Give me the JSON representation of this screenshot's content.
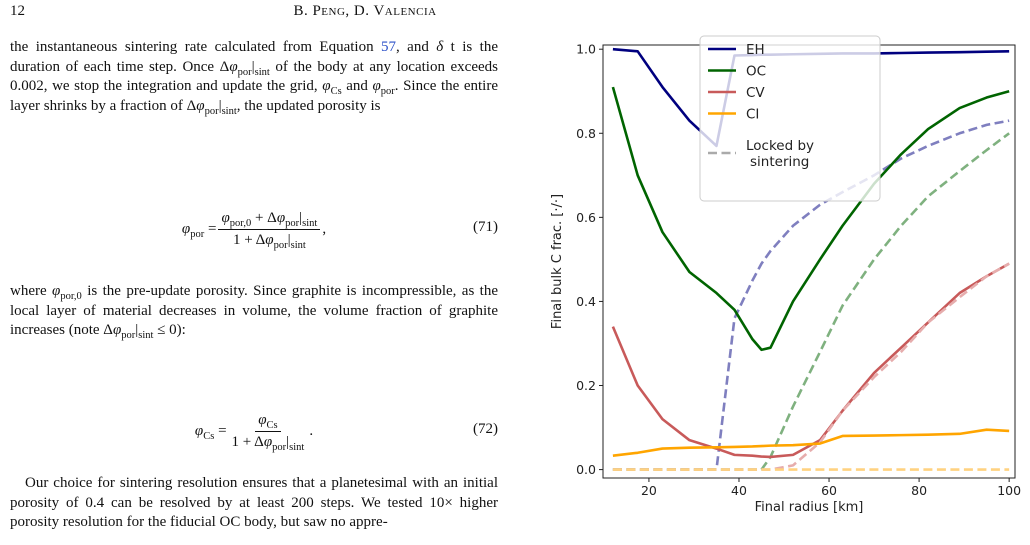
{
  "header": {
    "page_number": "12",
    "authors": "B. Peng, D. Valencia"
  },
  "text": {
    "paragraphs": [
      [
        "the instantaneous sintering rate calculated from Equation ",
        {
          "link": "57"
        },
        ", and ",
        {
          "i": "δ"
        },
        " t is the duration of each time step. Once Δ",
        {
          "i": "φ"
        },
        {
          "sub": "por"
        },
        "|",
        {
          "sub": "sint"
        },
        " of the body at any location exceeds 0.002, we stop the integration and update the grid, ",
        {
          "i": "φ"
        },
        {
          "sub": "Cs"
        },
        " and ",
        {
          "i": "φ"
        },
        {
          "sub": "por"
        },
        ". Since the entire layer shrinks by a fraction of Δ",
        {
          "i": "φ"
        },
        {
          "sub": "por"
        },
        "|",
        {
          "sub": "sint"
        },
        ", the updated porosity is"
      ],
      [
        "where ",
        {
          "i": "φ"
        },
        {
          "sub": "por,0"
        },
        " is the pre-update porosity. Since graphite is incompressible, as the local layer of material decreases in volume, the volume fraction of graphite increases (note Δ",
        {
          "i": "φ"
        },
        {
          "sub": "por"
        },
        "|",
        {
          "sub": "sint"
        },
        " ≤ 0):"
      ],
      [
        "Our choice for sintering resolution ensures that a planetesimal with an initial porosity of 0.4 can be resolved by at least 200 steps. We tested 10× higher porosity resolution for the fiducial OC body, but saw no appre-"
      ]
    ],
    "equations": [
      {
        "lhs": [
          {
            "i": "φ"
          },
          {
            "sub": "por"
          },
          " = "
        ],
        "num": [
          {
            "i": "φ"
          },
          {
            "sub": "por,0"
          },
          " + Δ",
          {
            "i": "φ"
          },
          {
            "sub": "por"
          },
          "|",
          {
            "sub": "sint"
          }
        ],
        "den": [
          "1 + Δ",
          {
            "i": "φ"
          },
          {
            "sub": "por"
          },
          "|",
          {
            "sub": "sint"
          }
        ],
        "tail": [
          ","
        ],
        "number": "(71)"
      },
      {
        "lhs": [
          {
            "i": "φ"
          },
          {
            "sub": "Cs"
          },
          " = "
        ],
        "num": [
          {
            "i": "φ"
          },
          {
            "sub": "Cs"
          }
        ],
        "den": [
          "1 + Δ",
          {
            "i": "φ"
          },
          {
            "sub": "por"
          },
          "|",
          {
            "sub": "sint"
          }
        ],
        "tail": [
          "."
        ],
        "number": "(72)"
      }
    ]
  },
  "chart_data": {
    "type": "line",
    "x_label": "Final radius [km]",
    "y_label": "Final bulk C frac. [·/·]",
    "x": [
      12,
      17.5,
      23,
      29,
      35,
      39,
      43,
      45,
      47,
      52,
      58,
      63,
      70,
      76,
      82,
      89,
      95,
      100
    ],
    "xlim": [
      9.8,
      101.3
    ],
    "xticks": [
      20,
      40,
      60,
      80,
      100
    ],
    "ylim": [
      -0.02,
      1.01
    ],
    "yticks": [
      {
        "value": 0,
        "label": "0.0"
      },
      {
        "value": 0.2,
        "label": "0.2"
      },
      {
        "value": 0.4,
        "label": "0.4"
      },
      {
        "value": 0.6,
        "label": "0.6"
      },
      {
        "value": 0.8,
        "label": "0.8"
      },
      {
        "value": 1,
        "label": "1.0"
      }
    ],
    "series": [
      {
        "name": "EH",
        "color": "#00007f",
        "values": [
          1.0,
          0.995,
          0.91,
          0.83,
          0.77,
          0.985,
          0.986,
          0.987,
          0.987,
          0.988,
          0.989,
          0.99,
          0.99,
          0.991,
          0.992,
          0.993,
          0.994,
          0.995
        ],
        "locked": {
          "color": "#7f7fbf",
          "values": [
            0,
            0,
            0,
            0,
            0,
            0.36,
            0.45,
            0.49,
            0.52,
            0.58,
            0.63,
            0.66,
            0.7,
            0.74,
            0.77,
            0.8,
            0.82,
            0.83
          ]
        }
      },
      {
        "name": "OC",
        "color": "#006400",
        "values": [
          0.91,
          0.7,
          0.565,
          0.47,
          0.42,
          0.38,
          0.31,
          0.285,
          0.29,
          0.4,
          0.5,
          0.58,
          0.68,
          0.75,
          0.81,
          0.86,
          0.885,
          0.9
        ],
        "locked": {
          "color": "#7fb17f",
          "values": [
            0,
            0,
            0,
            0,
            0,
            0,
            0,
            0,
            0.03,
            0.15,
            0.28,
            0.39,
            0.5,
            0.58,
            0.65,
            0.71,
            0.76,
            0.8
          ]
        }
      },
      {
        "name": "CV",
        "color": "#c85a5a",
        "values": [
          0.34,
          0.2,
          0.12,
          0.07,
          0.05,
          0.035,
          0.033,
          0.031,
          0.03,
          0.035,
          0.07,
          0.14,
          0.23,
          0.29,
          0.35,
          0.42,
          0.46,
          0.49
        ],
        "locked": {
          "color": "#e6adad",
          "values": [
            0,
            0,
            0,
            0,
            0,
            0,
            0,
            0,
            0,
            0.01,
            0.065,
            0.14,
            0.22,
            0.28,
            0.35,
            0.41,
            0.46,
            0.49
          ]
        }
      },
      {
        "name": "CI",
        "color": "#ffa500",
        "values": [
          0.033,
          0.04,
          0.05,
          0.052,
          0.053,
          0.054,
          0.055,
          0.056,
          0.057,
          0.058,
          0.062,
          0.08,
          0.081,
          0.082,
          0.083,
          0.085,
          0.095,
          0.092
        ],
        "locked": {
          "color": "#ffd280",
          "values": [
            0,
            0,
            0,
            0,
            0,
            0,
            0,
            0,
            0,
            0,
            0,
            0,
            0,
            0,
            0,
            0,
            0,
            0
          ]
        }
      }
    ],
    "locked_legend": {
      "label_lines": [
        "Locked by",
        "sintering"
      ],
      "color": "#aaaaaa"
    },
    "legend": "upper center"
  }
}
